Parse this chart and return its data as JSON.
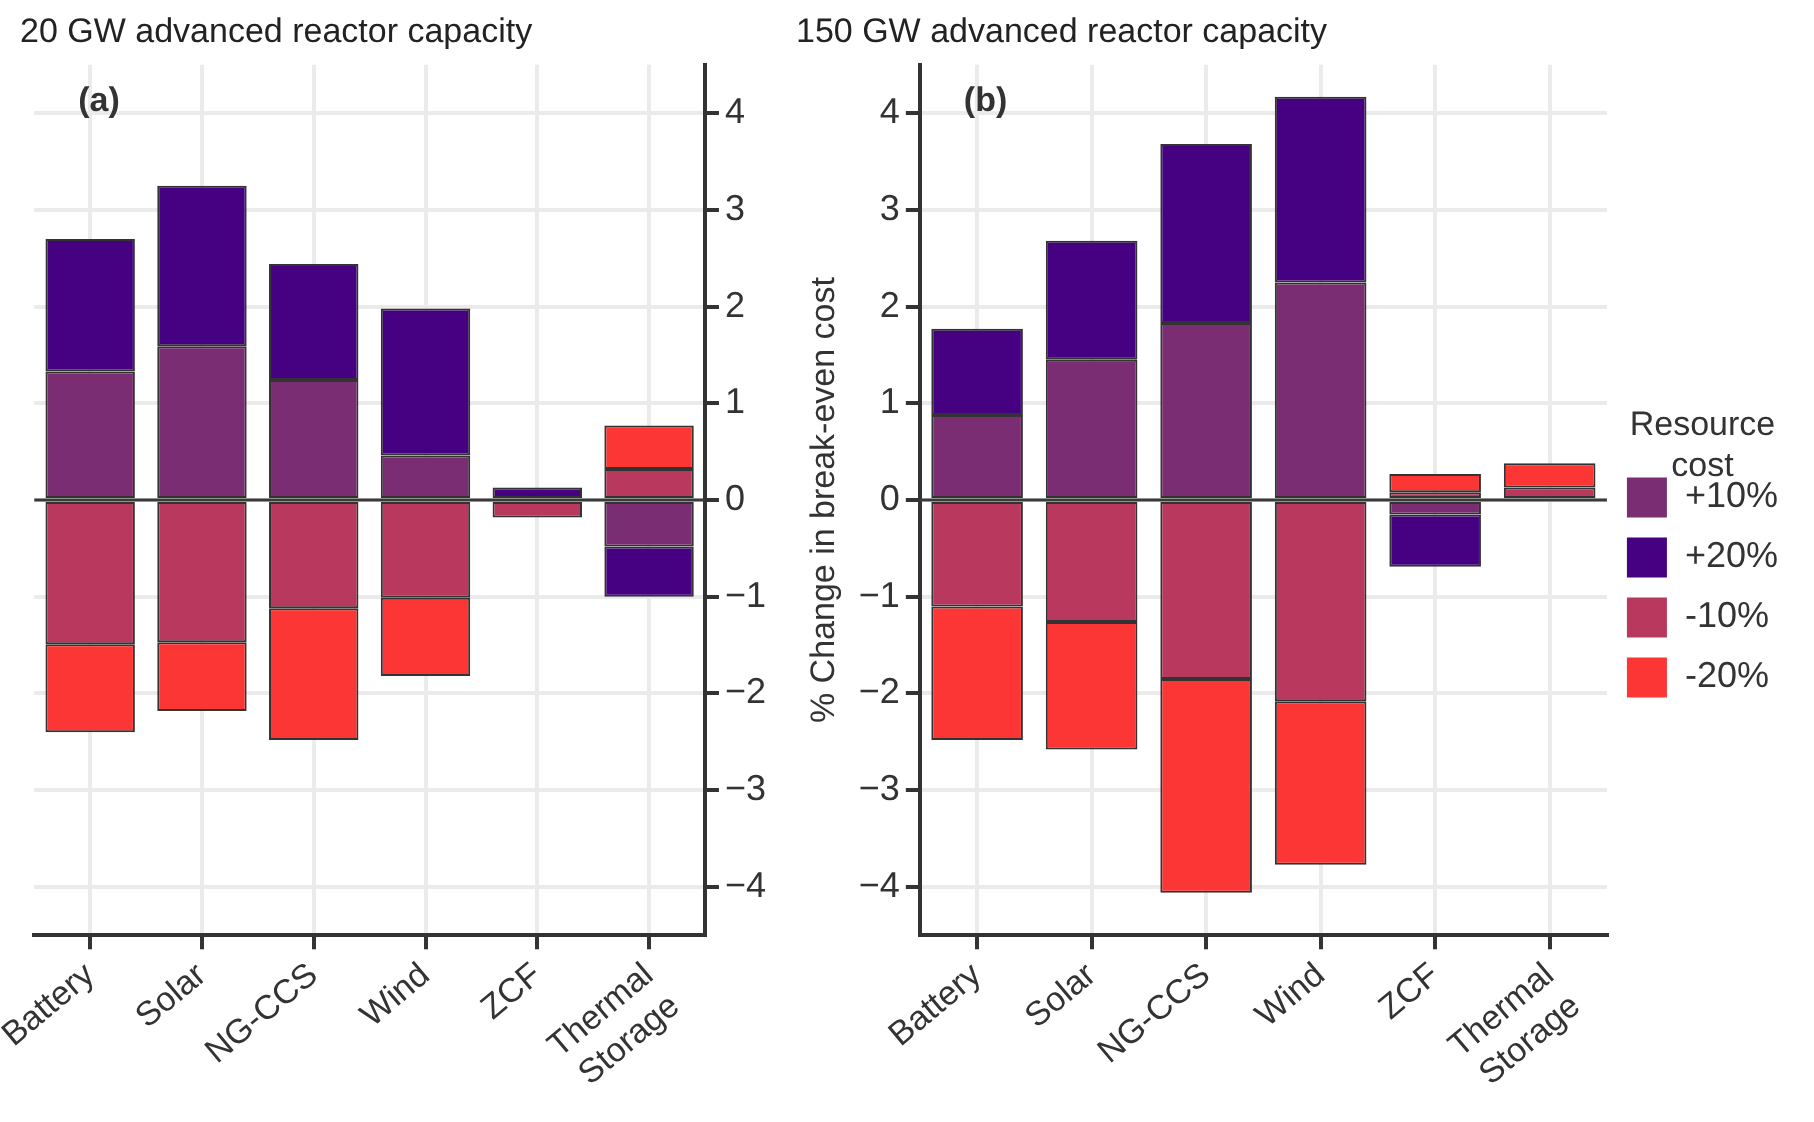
{
  "chart_data": [
    {
      "type": "bar",
      "title": "20 GW advanced reactor capacity",
      "annotations": [
        "(a)"
      ],
      "categories": [
        "Battery",
        "Solar",
        "NG-CCS",
        "Wind",
        "ZCF",
        "Thermal Storage"
      ],
      "stacked": true,
      "series": [
        {
          "color": "#7b2d73",
          "values": [
            1.33,
            1.59,
            1.24,
            0.46,
            null,
            -0.48
          ]
        },
        {
          "color": "#460082",
          "values": [
            1.37,
            1.66,
            1.2,
            1.52,
            0.13,
            -0.52
          ]
        },
        {
          "color": "#b9395e",
          "values": [
            -1.49,
            -1.47,
            -1.12,
            -1.01,
            -0.18,
            0.32
          ]
        },
        {
          "color": "#fc3535",
          "values": [
            -0.91,
            -0.71,
            -1.36,
            -0.81,
            null,
            0.45
          ]
        }
      ],
      "ylim": [
        -4.5,
        4.5
      ],
      "yticks": [
        {
          "value": -4,
          "label": "−4"
        },
        {
          "value": -3,
          "label": "−3"
        },
        {
          "value": -2,
          "label": "−2"
        },
        {
          "value": -1,
          "label": "−1"
        },
        0,
        1,
        2,
        3,
        4
      ],
      "grid": true,
      "legend": false,
      "ref_lines": [
        {
          "axis": "y",
          "value": 0,
          "color": "#3a3a3a"
        }
      ]
    },
    {
      "type": "bar",
      "title": "150 GW advanced reactor capacity",
      "ylabel": "% Change in break-even cost",
      "legend_title": "Resource cost",
      "annotations": [
        "(b)"
      ],
      "categories": [
        "Battery",
        "Solar",
        "NG-CCS",
        "Wind",
        "ZCF",
        "Thermal Storage"
      ],
      "stacked": true,
      "series": [
        {
          "name": "+10%",
          "color": "#7b2d73",
          "values": [
            0.88,
            1.45,
            1.83,
            2.25,
            -0.15,
            null
          ]
        },
        {
          "name": "+20%",
          "color": "#460082",
          "values": [
            0.89,
            1.23,
            1.85,
            1.92,
            -0.54,
            null
          ]
        },
        {
          "name": "-10%",
          "color": "#b9395e",
          "values": [
            -1.1,
            -1.26,
            -1.85,
            -2.08,
            0.08,
            0.13
          ]
        },
        {
          "name": "-20%",
          "color": "#fc3535",
          "values": [
            -1.38,
            -1.32,
            -2.21,
            -1.69,
            0.19,
            0.25
          ]
        }
      ],
      "ylim": [
        -4.5,
        4.5
      ],
      "yticks": [
        {
          "value": -4,
          "label": "−4"
        },
        {
          "value": -3,
          "label": "−3"
        },
        {
          "value": -2,
          "label": "−2"
        },
        {
          "value": -1,
          "label": "−1"
        },
        0,
        1,
        2,
        3,
        4
      ],
      "grid": true,
      "legend": "right",
      "ref_lines": [
        {
          "axis": "y",
          "value": 0,
          "color": "#3a3a3a"
        }
      ]
    }
  ]
}
